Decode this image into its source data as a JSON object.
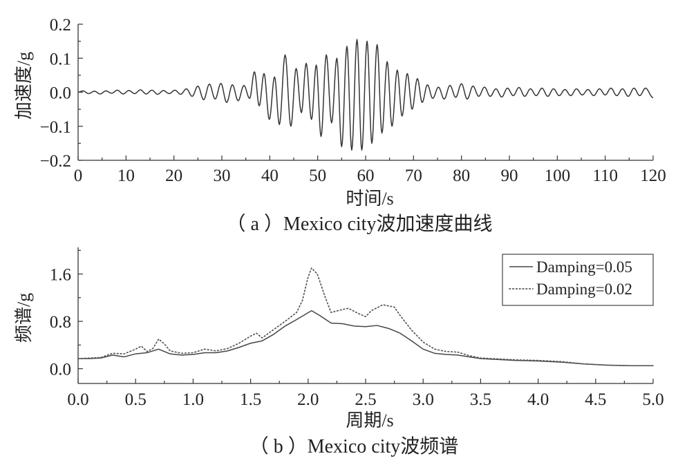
{
  "chart_data": [
    {
      "type": "line",
      "caption": "（ a ）Mexico city波加速度曲线",
      "xlabel": "时间/s",
      "ylabel": "加速度/g",
      "xlim": [
        0,
        120
      ],
      "ylim": [
        -0.2,
        0.2
      ],
      "xticks": [
        0,
        10,
        20,
        30,
        40,
        50,
        60,
        70,
        80,
        90,
        100,
        110,
        120
      ],
      "xtick_labels": [
        "0",
        "10",
        "20",
        "30",
        "40",
        "50",
        "60",
        "70",
        "80",
        "90",
        "100",
        "110",
        "120"
      ],
      "yticks": [
        -0.2,
        -0.1,
        0,
        0.1,
        0.2
      ],
      "ytick_labels": [
        "−0.2",
        "−0.1",
        "0.0",
        "0.1",
        "0.2"
      ],
      "grid": false,
      "series": [
        {
          "color": "#333333",
          "line_style": "solid",
          "points": [
            [
              0,
              0
            ],
            [
              1.0,
              0.004
            ],
            [
              2.2,
              -0.004
            ],
            [
              3.4,
              0.003
            ],
            [
              4.6,
              -0.005
            ],
            [
              5.8,
              0.004
            ],
            [
              7.0,
              -0.003
            ],
            [
              8.2,
              0.006
            ],
            [
              9.4,
              -0.005
            ],
            [
              10.6,
              0.005
            ],
            [
              11.8,
              -0.004
            ],
            [
              13.0,
              0.007
            ],
            [
              14.2,
              -0.005
            ],
            [
              15.4,
              0.006
            ],
            [
              16.6,
              -0.006
            ],
            [
              17.8,
              0.005
            ],
            [
              19.0,
              -0.004
            ],
            [
              20.2,
              0.006
            ],
            [
              21.4,
              -0.006
            ],
            [
              22.6,
              0.01
            ],
            [
              23.8,
              -0.012
            ],
            [
              25.0,
              0.018
            ],
            [
              26.2,
              -0.022
            ],
            [
              27.4,
              0.024
            ],
            [
              28.6,
              -0.02
            ],
            [
              29.8,
              0.026
            ],
            [
              31.0,
              -0.03
            ],
            [
              32.2,
              0.022
            ],
            [
              33.4,
              -0.025
            ],
            [
              34.6,
              0.02
            ],
            [
              35.8,
              -0.018
            ],
            [
              36.8,
              0.06
            ],
            [
              37.8,
              -0.04
            ],
            [
              38.8,
              0.055
            ],
            [
              39.9,
              -0.08
            ],
            [
              41.0,
              0.045
            ],
            [
              42.0,
              -0.095
            ],
            [
              43.2,
              0.11
            ],
            [
              44.4,
              -0.1
            ],
            [
              45.5,
              0.07
            ],
            [
              46.6,
              -0.06
            ],
            [
              47.6,
              0.085
            ],
            [
              48.7,
              -0.08
            ],
            [
              49.7,
              0.08
            ],
            [
              50.7,
              -0.13
            ],
            [
              51.8,
              0.11
            ],
            [
              52.9,
              -0.09
            ],
            [
              54.0,
              0.1
            ],
            [
              55.0,
              -0.16
            ],
            [
              56.1,
              0.135
            ],
            [
              57.1,
              -0.17
            ],
            [
              58.2,
              0.155
            ],
            [
              59.2,
              -0.17
            ],
            [
              60.3,
              0.15
            ],
            [
              61.3,
              -0.15
            ],
            [
              62.4,
              0.14
            ],
            [
              63.4,
              -0.12
            ],
            [
              64.5,
              0.09
            ],
            [
              65.5,
              -0.1
            ],
            [
              66.6,
              0.065
            ],
            [
              67.6,
              -0.07
            ],
            [
              68.7,
              0.055
            ],
            [
              69.7,
              -0.05
            ],
            [
              70.8,
              0.04
            ],
            [
              71.8,
              -0.03
            ],
            [
              72.9,
              0.022
            ],
            [
              74.0,
              -0.018
            ],
            [
              75.2,
              0.015
            ],
            [
              76.4,
              -0.02
            ],
            [
              77.6,
              0.02
            ],
            [
              78.8,
              -0.015
            ],
            [
              80.0,
              0.025
            ],
            [
              81.2,
              -0.02
            ],
            [
              82.4,
              0.018
            ],
            [
              83.6,
              -0.012
            ],
            [
              84.8,
              0.015
            ],
            [
              86.0,
              -0.012
            ],
            [
              87.2,
              0.01
            ],
            [
              88.4,
              -0.014
            ],
            [
              89.6,
              0.012
            ],
            [
              90.8,
              -0.01
            ],
            [
              92.0,
              0.014
            ],
            [
              93.2,
              -0.012
            ],
            [
              94.4,
              0.01
            ],
            [
              95.6,
              -0.01
            ],
            [
              96.8,
              0.012
            ],
            [
              98.0,
              -0.012
            ],
            [
              99.2,
              0.01
            ],
            [
              100.4,
              -0.01
            ],
            [
              101.6,
              0.008
            ],
            [
              102.8,
              -0.01
            ],
            [
              104.0,
              0.01
            ],
            [
              105.2,
              -0.008
            ],
            [
              106.4,
              0.008
            ],
            [
              107.6,
              -0.01
            ],
            [
              108.8,
              0.01
            ],
            [
              110.0,
              -0.008
            ],
            [
              111.2,
              0.012
            ],
            [
              112.4,
              -0.01
            ],
            [
              113.6,
              0.01
            ],
            [
              114.8,
              -0.012
            ],
            [
              116.0,
              0.012
            ],
            [
              117.2,
              -0.01
            ],
            [
              118.4,
              0.012
            ],
            [
              120.0,
              -0.016
            ]
          ]
        }
      ]
    },
    {
      "type": "line",
      "caption": "（ b ）Mexico city波频谱",
      "xlabel": "周期/s",
      "ylabel": "频谱/g",
      "xlim": [
        0,
        5
      ],
      "ylim": [
        -0.25,
        2.05
      ],
      "xticks": [
        0,
        0.5,
        1.0,
        1.5,
        2.0,
        2.5,
        3.0,
        3.5,
        4.0,
        4.5,
        5.0
      ],
      "xtick_labels": [
        "0.0",
        "0.5",
        "1.0",
        "1.5",
        "2.0",
        "2.5",
        "3.0",
        "3.5",
        "4.0",
        "4.5",
        "5.0"
      ],
      "yticks": [
        0,
        0.8,
        1.6
      ],
      "ytick_labels": [
        "0.0",
        "0.8",
        "1.6"
      ],
      "grid": false,
      "legend": "top-right",
      "series": [
        {
          "name": "Damping=0.05",
          "color": "#444444",
          "line_style": "solid",
          "points": [
            [
              0,
              0.17
            ],
            [
              0.1,
              0.17
            ],
            [
              0.2,
              0.18
            ],
            [
              0.3,
              0.23
            ],
            [
              0.4,
              0.2
            ],
            [
              0.5,
              0.25
            ],
            [
              0.6,
              0.27
            ],
            [
              0.7,
              0.33
            ],
            [
              0.8,
              0.25
            ],
            [
              0.9,
              0.23
            ],
            [
              1.0,
              0.24
            ],
            [
              1.1,
              0.27
            ],
            [
              1.2,
              0.27
            ],
            [
              1.3,
              0.3
            ],
            [
              1.4,
              0.36
            ],
            [
              1.5,
              0.43
            ],
            [
              1.6,
              0.47
            ],
            [
              1.7,
              0.58
            ],
            [
              1.8,
              0.72
            ],
            [
              1.9,
              0.83
            ],
            [
              2.03,
              0.98
            ],
            [
              2.1,
              0.9
            ],
            [
              2.2,
              0.77
            ],
            [
              2.3,
              0.76
            ],
            [
              2.4,
              0.72
            ],
            [
              2.5,
              0.71
            ],
            [
              2.6,
              0.73
            ],
            [
              2.7,
              0.68
            ],
            [
              2.8,
              0.6
            ],
            [
              2.9,
              0.47
            ],
            [
              3.0,
              0.33
            ],
            [
              3.1,
              0.26
            ],
            [
              3.2,
              0.24
            ],
            [
              3.3,
              0.23
            ],
            [
              3.4,
              0.2
            ],
            [
              3.5,
              0.17
            ],
            [
              3.6,
              0.16
            ],
            [
              3.8,
              0.14
            ],
            [
              4.0,
              0.13
            ],
            [
              4.2,
              0.11
            ],
            [
              4.4,
              0.08
            ],
            [
              4.6,
              0.06
            ],
            [
              4.8,
              0.05
            ],
            [
              5.0,
              0.05
            ]
          ]
        },
        {
          "name": "Damping=0.02",
          "color": "#555555",
          "line_style": "dotted",
          "points": [
            [
              0,
              0.17
            ],
            [
              0.1,
              0.18
            ],
            [
              0.2,
              0.19
            ],
            [
              0.3,
              0.26
            ],
            [
              0.4,
              0.25
            ],
            [
              0.5,
              0.33
            ],
            [
              0.55,
              0.38
            ],
            [
              0.6,
              0.29
            ],
            [
              0.65,
              0.34
            ],
            [
              0.7,
              0.5
            ],
            [
              0.75,
              0.42
            ],
            [
              0.8,
              0.3
            ],
            [
              0.9,
              0.26
            ],
            [
              1.0,
              0.27
            ],
            [
              1.1,
              0.33
            ],
            [
              1.2,
              0.3
            ],
            [
              1.3,
              0.34
            ],
            [
              1.4,
              0.43
            ],
            [
              1.5,
              0.55
            ],
            [
              1.55,
              0.6
            ],
            [
              1.6,
              0.52
            ],
            [
              1.7,
              0.66
            ],
            [
              1.8,
              0.8
            ],
            [
              1.9,
              0.95
            ],
            [
              1.95,
              1.15
            ],
            [
              2.0,
              1.55
            ],
            [
              2.03,
              1.7
            ],
            [
              2.08,
              1.6
            ],
            [
              2.15,
              1.2
            ],
            [
              2.2,
              0.95
            ],
            [
              2.3,
              1.0
            ],
            [
              2.35,
              1.02
            ],
            [
              2.45,
              0.92
            ],
            [
              2.5,
              0.88
            ],
            [
              2.55,
              0.98
            ],
            [
              2.65,
              1.08
            ],
            [
              2.75,
              1.04
            ],
            [
              2.8,
              0.9
            ],
            [
              2.9,
              0.65
            ],
            [
              3.0,
              0.45
            ],
            [
              3.1,
              0.33
            ],
            [
              3.2,
              0.29
            ],
            [
              3.3,
              0.28
            ],
            [
              3.4,
              0.22
            ],
            [
              3.5,
              0.18
            ],
            [
              3.6,
              0.17
            ],
            [
              3.8,
              0.15
            ],
            [
              4.0,
              0.14
            ],
            [
              4.2,
              0.12
            ],
            [
              4.4,
              0.08
            ],
            [
              4.6,
              0.06
            ],
            [
              4.8,
              0.05
            ],
            [
              5.0,
              0.05
            ]
          ]
        }
      ]
    }
  ]
}
